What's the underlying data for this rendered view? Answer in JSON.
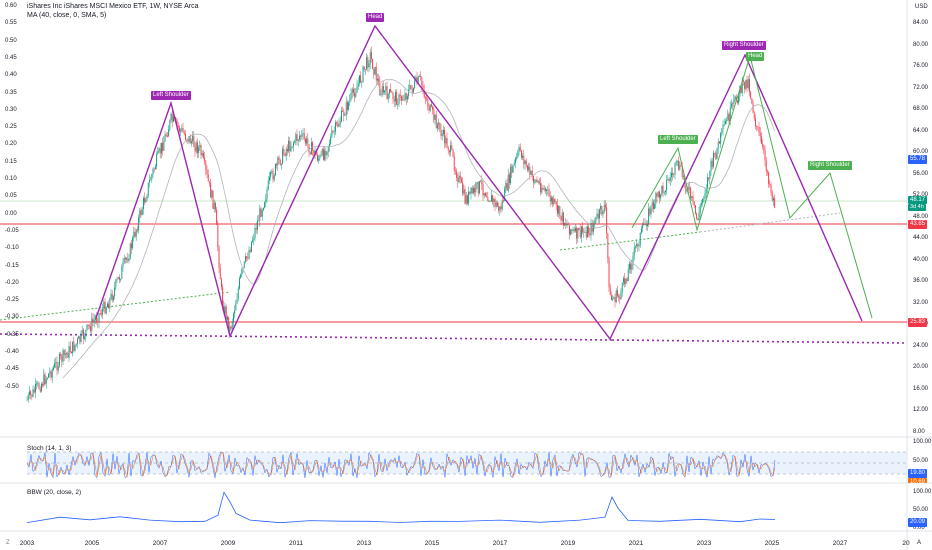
{
  "header": {
    "title": "iShares Inc iShares MSCI Mexico ETF, 1W, NYSE Arca",
    "ma": "MA (40, close, 0, SMA, 5)",
    "currency": "USD"
  },
  "colors": {
    "pattern_purple": "#9c27b0",
    "pattern_green": "#4caf50",
    "level_red": "#f23645",
    "ma_gray": "#b2b5be",
    "stoch_blue": "#2962ff",
    "stoch_orange": "#ff6d00",
    "bbw_blue": "#2962ff"
  },
  "left_axis": [
    "0.60",
    "0.55",
    "0.50",
    "0.45",
    "0.40",
    "0.35",
    "0.30",
    "0.25",
    "0.20",
    "0.15",
    "0.10",
    "0.05",
    "0.00",
    "-0.05",
    "-0.10",
    "-0.15",
    "-0.20",
    "-0.25",
    "-0.30",
    "-0.35",
    "-0.40",
    "-0.45",
    "-0.50"
  ],
  "right_axis": [
    "84.00",
    "80.00",
    "76.00",
    "72.00",
    "68.00",
    "64.00",
    "60.00",
    "56.00",
    "52.00",
    "48.00",
    "44.00",
    "40.00",
    "36.00",
    "32.00",
    "28.00",
    "24.00",
    "20.00",
    "16.00",
    "12.00",
    "8.00"
  ],
  "price_badges": {
    "b1": "55.78",
    "b2_price": "48.17",
    "b2_time": "3d 4h",
    "b3": "43.85",
    "b4": "25.83"
  },
  "pattern_labels": {
    "purple_left_shoulder": "Left Shoulder",
    "purple_head": "Head",
    "purple_right_shoulder": "Right Shoulder",
    "green_left_shoulder": "Left Shoulder",
    "green_head": "Head",
    "green_right_shoulder": "Right Shoulder"
  },
  "stoch": {
    "label": "Stoch (14, 1, 3)",
    "axis": [
      "100.00",
      "50.00",
      "0.00"
    ],
    "badge_k": "19.80",
    "badge_d": "10.69"
  },
  "bbw": {
    "label": "BBW (20, close, 2)",
    "axis": [
      "100.00",
      "50.00",
      "0.00"
    ],
    "badge": "20.09"
  },
  "x_axis": [
    "2003",
    "2005",
    "2007",
    "2009",
    "2011",
    "2013",
    "2015",
    "2017",
    "2019",
    "2021",
    "2023",
    "2025",
    "2027",
    "20"
  ],
  "toolbar": {
    "timezone": "Z",
    "log": "A"
  }
}
